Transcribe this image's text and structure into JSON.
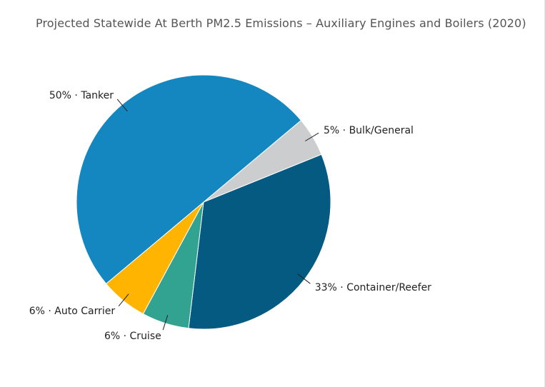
{
  "chart_data": {
    "type": "pie",
    "title": "Projected Statewide At Berth PM2.5 Emissions – Auxiliary Engines and Boilers (2020)",
    "slices": [
      {
        "name": "Bulk/General",
        "value": 5,
        "label": "5%",
        "color": "#cbcdcf"
      },
      {
        "name": "Container/Reefer",
        "value": 33,
        "label": "33%",
        "color": "#045a80"
      },
      {
        "name": "Cruise",
        "value": 6,
        "label": "6%",
        "color": "#32a391"
      },
      {
        "name": "Auto Carrier",
        "value": 6,
        "label": "6%",
        "color": "#feb400"
      },
      {
        "name": "Tanker",
        "value": 50,
        "label": "50%",
        "color": "#1587c0"
      }
    ],
    "separator": "·"
  }
}
